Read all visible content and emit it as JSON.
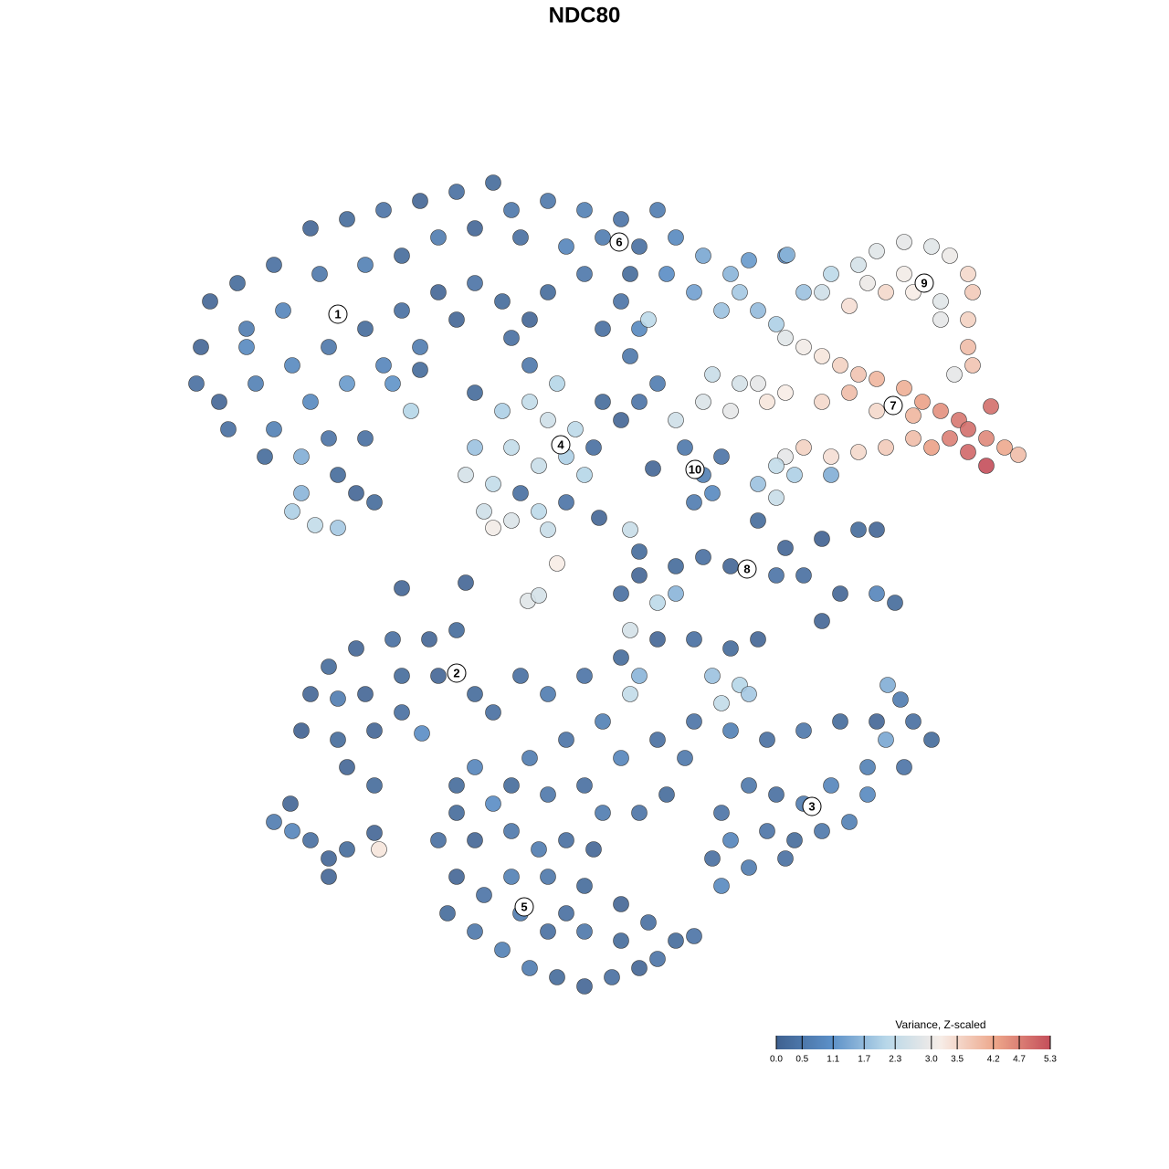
{
  "chart_data": {
    "type": "scatter",
    "title": "NDC80",
    "legend_title": "Variance, Z-scaled",
    "colors": [
      "#3f6190",
      "#5b8fc7",
      "#b7d7e9",
      "#f7ede7",
      "#eda68a",
      "#c44e5a"
    ],
    "ticks": [
      {
        "value": 0,
        "label": "0.0"
      },
      0.5,
      1.1,
      1.7,
      2.3,
      {
        "value": 3,
        "label": "3.0"
      },
      3.5,
      4.2,
      4.7,
      5.3
    ],
    "clusters": [
      {
        "label": "1",
        "x": -27,
        "y": 29.6
      },
      {
        "label": "2",
        "x": -14,
        "y": -9.7
      },
      {
        "label": "3",
        "x": 24.9,
        "y": -24.3
      },
      {
        "label": "4",
        "x": -2.6,
        "y": 15.3
      },
      {
        "label": "5",
        "x": -6.6,
        "y": -35.3
      },
      {
        "label": "6",
        "x": 3.8,
        "y": 37.5
      },
      {
        "label": "7",
        "x": 33.8,
        "y": 19.6
      },
      {
        "label": "8",
        "x": 17.8,
        "y": 1.7
      },
      {
        "label": "9",
        "x": 37.2,
        "y": 33
      },
      {
        "label": "10",
        "x": 12.1,
        "y": 12.6
      }
    ],
    "x": [
      -41,
      -38,
      -34,
      -30,
      -26,
      -22,
      -18,
      -14,
      -10,
      -8,
      -12,
      -16,
      -20,
      -24,
      -29,
      -33,
      -37,
      -42,
      -42.5,
      -40,
      -36,
      -32,
      -28,
      -24,
      -20,
      -16,
      -12,
      -9,
      -14,
      -18,
      -22,
      -26,
      -30,
      -34,
      -35,
      -31,
      -28,
      -27,
      -25,
      -32,
      -29.5,
      -27,
      -31,
      -23,
      -39,
      -37,
      -19,
      -21,
      -18,
      -24,
      -7,
      -4,
      -6,
      -8,
      -4,
      0,
      4,
      8,
      10,
      6,
      2,
      -2,
      0,
      5,
      9,
      13,
      16,
      17,
      19,
      21,
      15,
      12,
      4,
      6,
      2,
      5,
      7,
      18,
      22,
      -12,
      -9,
      -6,
      -3,
      -4,
      -1,
      1,
      -2,
      -5,
      -8,
      -12,
      -13,
      -10,
      -7,
      -11,
      -8,
      -5,
      -2,
      0,
      -10,
      -4,
      -6,
      2,
      4,
      6,
      8,
      11,
      13,
      15,
      12,
      14,
      10,
      13,
      16,
      17,
      14,
      7.5,
      24,
      27,
      30,
      32,
      35,
      38,
      40,
      42,
      42.5,
      42,
      42,
      42.5,
      39,
      39,
      36,
      33,
      31,
      35,
      29,
      26,
      40.5,
      22,
      24,
      26,
      28,
      30,
      32,
      35,
      37,
      39,
      41,
      42,
      44,
      46,
      47.5,
      44.5,
      44,
      42,
      40,
      38,
      36,
      33,
      30,
      27,
      24,
      22,
      20,
      22,
      26,
      29,
      32,
      19,
      36,
      21,
      23,
      19,
      21,
      27,
      19,
      22,
      26,
      30,
      32,
      24,
      28,
      32,
      34,
      26,
      16,
      13,
      10,
      21,
      6,
      4,
      10,
      8,
      5,
      -30,
      -28,
      -25,
      -21,
      -17,
      -14,
      -31,
      -27,
      -23,
      -20,
      -24,
      -20,
      -16,
      -12,
      -10,
      -26,
      -23,
      -27,
      -17.8,
      -7,
      -4,
      0,
      4,
      8,
      12,
      16,
      19,
      14,
      17,
      15,
      18,
      6,
      5,
      2,
      -2,
      -6,
      -8,
      -4,
      0,
      4,
      8,
      11,
      9,
      6,
      2,
      12,
      16,
      20,
      24,
      28,
      32,
      36,
      38,
      35,
      31,
      27,
      24,
      21,
      18,
      15,
      16,
      20,
      23,
      26,
      29,
      31,
      33,
      18,
      15,
      22,
      14,
      -14,
      -16,
      -12,
      -8,
      -5,
      -2,
      1,
      -14,
      -15,
      -11,
      -8,
      -4,
      0,
      4,
      7,
      10,
      12,
      -12,
      -9,
      -6,
      -3,
      0,
      3,
      6,
      8,
      -4,
      0,
      4,
      -7,
      -2,
      -10,
      -12,
      -14,
      -34,
      -32,
      -30,
      -28,
      -26,
      -28,
      -23,
      -22.5,
      -32.2,
      -3,
      -6.2,
      -5,
      -20,
      -13,
      1.6,
      5,
      6,
      22.2,
      33.2,
      34.6
    ],
    "y": [
      31,
      33,
      35,
      39,
      40,
      41,
      42,
      43,
      44,
      41,
      39,
      38,
      36,
      35,
      34,
      30,
      28,
      26,
      22,
      20,
      22,
      24,
      26,
      28,
      30,
      32,
      33,
      31,
      29,
      26,
      24,
      22,
      20,
      17,
      14,
      14,
      16,
      12,
      10,
      8,
      6.5,
      6.2,
      10,
      9,
      17,
      26,
      19,
      22,
      23.5,
      16,
      38,
      32,
      29,
      27,
      42,
      41,
      40,
      41,
      38,
      37,
      38,
      37,
      34,
      34,
      34,
      36,
      34,
      32,
      30,
      28.5,
      30,
      32,
      31,
      28,
      28,
      25,
      29,
      35.5,
      36,
      21,
      19,
      20,
      22,
      18,
      17,
      15,
      14,
      13,
      15,
      15,
      12,
      11,
      10,
      8,
      7,
      8,
      9,
      12,
      6.2,
      6,
      24,
      20,
      18,
      20,
      22,
      15,
      12,
      14,
      9,
      10,
      18,
      20,
      19,
      22,
      23,
      12.7,
      32,
      34,
      35,
      36.5,
      37.5,
      37,
      36,
      34,
      32,
      29,
      26,
      24,
      31,
      29,
      32,
      32,
      33,
      34,
      30.5,
      32,
      23,
      27,
      26,
      25,
      24,
      23,
      22.5,
      21.5,
      20,
      19,
      18,
      17,
      16,
      15,
      14.2,
      19.5,
      13,
      14.5,
      16,
      15,
      16,
      15,
      14.5,
      14,
      15,
      14,
      20,
      21,
      20,
      21,
      19,
      22,
      18.5,
      13,
      12,
      11,
      9.5,
      12,
      7,
      4,
      5,
      6,
      6,
      1,
      -1,
      -1,
      -2,
      -4,
      2,
      3,
      2,
      1,
      1,
      -1,
      -1,
      -2,
      -5,
      -12,
      -9,
      -7,
      -6,
      -6,
      -5,
      -16,
      -17,
      -16,
      -14,
      -12,
      -10,
      -10,
      -12,
      -14,
      -20,
      -22,
      -12.5,
      -16.3,
      -10,
      -12,
      -10,
      -8,
      -6,
      -6,
      -7,
      -6,
      -10,
      -11,
      -13,
      -12,
      -10,
      -12,
      -15,
      -17,
      -19,
      -22,
      -23,
      -22,
      -19,
      -17,
      -19,
      -23,
      -25,
      -25,
      -15,
      -16,
      -17,
      -16,
      -15,
      -15,
      -15,
      -17,
      -20,
      -20,
      -22,
      -24,
      -23,
      -22,
      -25,
      -28,
      -27,
      -28,
      -27,
      -26,
      -23,
      -17,
      -31,
      -33,
      -30,
      -30,
      -25,
      -28,
      -28,
      -27,
      -29,
      -28,
      -29,
      -32,
      -36,
      -34,
      -32,
      -32,
      -33,
      -35,
      -37,
      -39,
      -38.5,
      -38,
      -40,
      -42,
      -43,
      -44,
      -43,
      -42,
      -41,
      -38,
      -38,
      -39,
      -36,
      -36,
      -24,
      -20,
      -22,
      -26,
      -27,
      -28,
      -30,
      -29,
      -32,
      -27.2,
      -29,
      -24,
      2.3,
      -1.8,
      -1.2,
      -0.4,
      0.2,
      7.3,
      6,
      3.6,
      36.1,
      -11,
      -12.6
    ],
    "values": [
      0.1,
      0.2,
      0.3,
      0.1,
      0.2,
      0.4,
      0.1,
      0.3,
      0.2,
      0.5,
      0.1,
      0.6,
      0.2,
      0.7,
      0.5,
      0.8,
      0.6,
      0.1,
      0.3,
      0.1,
      0.7,
      0.9,
      0.5,
      0.2,
      0.3,
      0.1,
      0.4,
      0.2,
      0.1,
      0.6,
      0.8,
      1.2,
      0.9,
      0.7,
      0.2,
      1.5,
      0.4,
      0.2,
      0.1,
      2.0,
      2.3,
      1.9,
      1.6,
      0.2,
      0.3,
      0.9,
      2.1,
      1.1,
      0.2,
      0.3,
      0.3,
      0.2,
      0.1,
      0.3,
      0.5,
      0.7,
      0.4,
      0.6,
      0.9,
      0.3,
      0.6,
      0.8,
      0.5,
      0.2,
      1.0,
      1.4,
      1.6,
      1.9,
      1.7,
      2.0,
      1.8,
      1.3,
      0.4,
      0.9,
      0.3,
      0.5,
      2.2,
      1.2,
      1.0,
      0.2,
      2.0,
      2.3,
      2.1,
      2.5,
      2.2,
      0.3,
      2.0,
      2.4,
      2.3,
      1.8,
      2.6,
      2.3,
      0.3,
      2.5,
      2.7,
      2.2,
      0.4,
      2.1,
      3.1,
      2.4,
      0.5,
      0.2,
      0.1,
      0.4,
      0.6,
      0.5,
      0.7,
      0.4,
      0.6,
      0.9,
      2.5,
      2.7,
      2.9,
      2.6,
      2.4,
      0.1,
      1.8,
      2.2,
      2.6,
      2.8,
      2.9,
      2.8,
      3.0,
      3.5,
      3.7,
      3.6,
      3.9,
      3.8,
      2.8,
      2.9,
      3.2,
      3.5,
      3.0,
      3.1,
      3.4,
      2.5,
      2.9,
      2.8,
      3.1,
      3.3,
      3.6,
      3.8,
      4.0,
      4.1,
      4.3,
      4.5,
      4.8,
      4.9,
      4.6,
      4.2,
      3.9,
      4.9,
      5.3,
      5.0,
      4.7,
      4.3,
      3.9,
      3.7,
      3.5,
      3.4,
      3.6,
      2.9,
      3.3,
      3.2,
      3.5,
      3.9,
      3.5,
      2.9,
      4.0,
      2.3,
      2.0,
      1.8,
      2.4,
      1.5,
      0.2,
      0.1,
      0.0,
      0.2,
      0.1,
      0.3,
      0.1,
      0.8,
      0.2,
      0.1,
      0.1,
      0.3,
      0.2,
      0.4,
      0.1,
      0.3,
      1.6,
      2.2,
      2.6,
      0.1,
      0.2,
      0.1,
      0.3,
      0.1,
      0.2,
      0.0,
      0.2,
      0.1,
      0.3,
      0.1,
      0.2,
      0.1,
      0.2,
      0.3,
      0.1,
      0.2,
      0.6,
      1.0,
      0.3,
      0.6,
      0.4,
      0.2,
      0.1,
      0.3,
      0.2,
      0.1,
      1.8,
      2.1,
      2.3,
      1.9,
      1.6,
      2.3,
      0.7,
      0.4,
      0.6,
      0.2,
      0.5,
      0.3,
      0.8,
      0.3,
      0.5,
      0.2,
      0.4,
      0.6,
      0.4,
      0.7,
      0.3,
      0.5,
      0.2,
      0.1,
      0.3,
      0.2,
      0.4,
      0.7,
      0.8,
      0.6,
      0.3,
      0.5,
      0.4,
      0.8,
      0.4,
      0.2,
      0.5,
      0.7,
      0.9,
      1.4,
      0.6,
      0.9,
      0.3,
      0.3,
      0.2,
      0.3,
      0.1,
      0.5,
      0.6,
      0.3,
      0.1,
      0.1,
      0.2,
      0.4,
      0.7,
      0.5,
      0.2,
      0.1,
      0.3,
      0.2,
      0.4,
      0.5,
      0.7,
      0.6,
      0.2,
      0.1,
      0.3,
      0.1,
      0.4,
      0.3,
      0.5,
      0.2,
      0.6,
      0.3,
      1.0,
      0.8,
      0.2,
      0.6,
      0.8,
      0.3,
      0.1,
      0.2,
      0.1,
      0.1,
      3.3,
      0.1,
      3.2,
      2.8,
      2.6,
      0.1,
      0.1,
      0.1,
      2.4,
      0.2,
      1.6,
      1.5,
      0.6
    ]
  }
}
